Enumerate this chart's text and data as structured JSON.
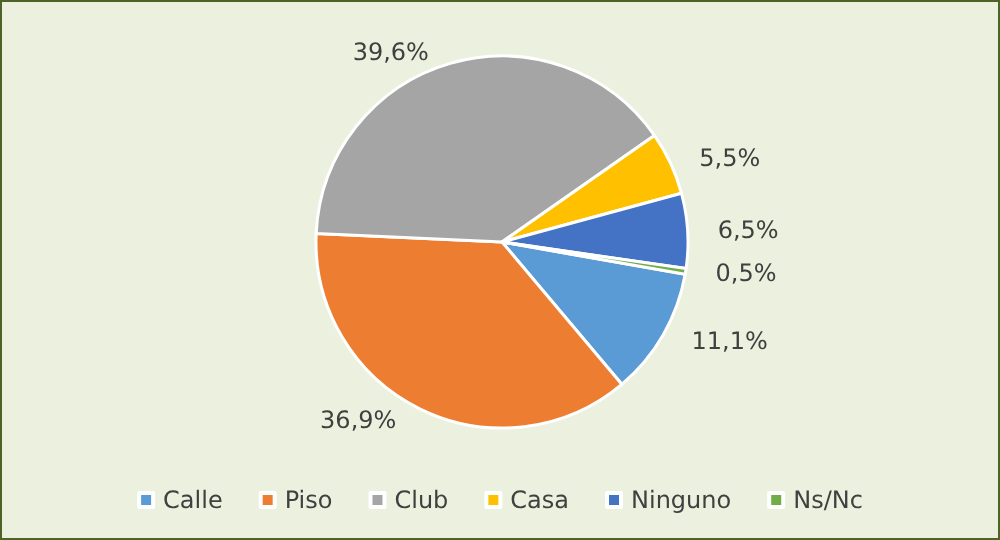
{
  "chart_data": {
    "type": "pie",
    "categories": [
      "Calle",
      "Piso",
      "Club",
      "Casa",
      "Ninguno",
      "Ns/Nc"
    ],
    "values": [
      11.1,
      36.9,
      39.6,
      5.5,
      6.5,
      0.5
    ],
    "colors": [
      "#5b9bd5",
      "#ed7d31",
      "#a5a5a5",
      "#ffc000",
      "#4472c4",
      "#70ad47"
    ],
    "value_labels": [
      "11,1%",
      "36,9%",
      "39,6%",
      "5,5%",
      "6,5%",
      "0,5%"
    ],
    "legend": "bottom"
  }
}
